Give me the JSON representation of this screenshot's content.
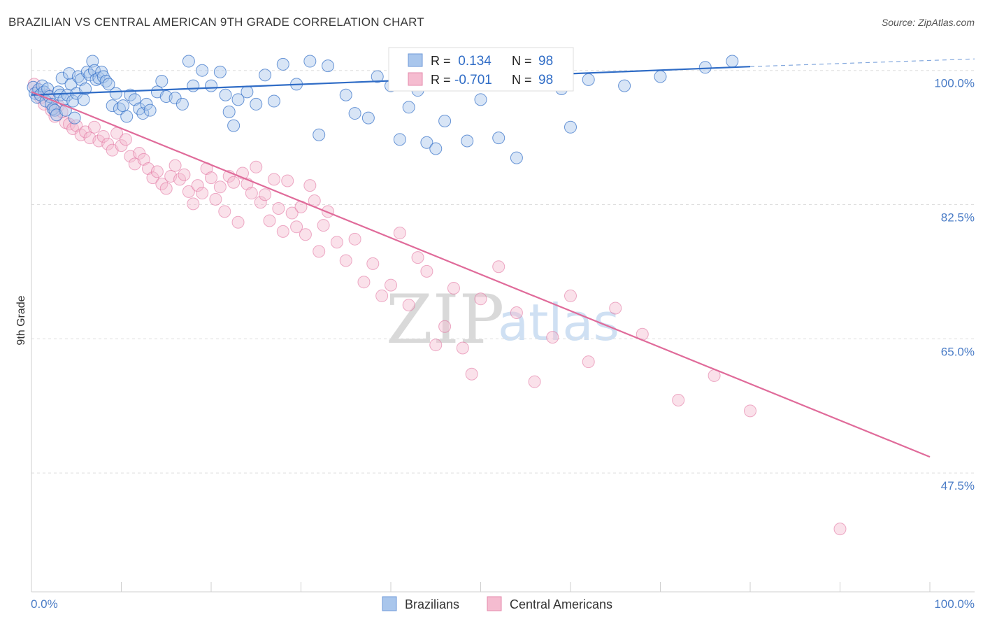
{
  "title": "BRAZILIAN VS CENTRAL AMERICAN 9TH GRADE CORRELATION CHART",
  "source": "Source: ZipAtlas.com",
  "watermark": {
    "zip": "ZIP",
    "atlas": "atlas"
  },
  "colors": {
    "blue": "#2f6cc6",
    "blue_fill": "#a9c6ec",
    "pink": "#e06b9a",
    "pink_fill": "#f5bcd0",
    "grid": "#dddddd",
    "axis_text": "#4a7cc6"
  },
  "legend": {
    "rows": [
      {
        "r_label": "R =",
        "r_value": " 0.134",
        "n_label": "N =",
        "n_value": "98"
      },
      {
        "r_label": "R =",
        "r_value": "-0.701",
        "n_label": "N =",
        "n_value": "98"
      }
    ]
  },
  "bottom_legend": {
    "series1": "Brazilians",
    "series2": "Central Americans"
  },
  "chart_data": {
    "type": "scatter",
    "title": "BRAZILIAN VS CENTRAL AMERICAN 9TH GRADE CORRELATION CHART",
    "xlabel": "",
    "ylabel": "9th Grade",
    "xlim": [
      0,
      100
    ],
    "ylim": [
      32.0,
      102.8
    ],
    "x_tick_labels": {
      "left": "0.0%",
      "right": "100.0%"
    },
    "y_ticks": [
      {
        "value": 100.0,
        "label": "100.0%"
      },
      {
        "value": 82.5,
        "label": "82.5%"
      },
      {
        "value": 65.0,
        "label": "65.0%"
      },
      {
        "value": 47.5,
        "label": "47.5%"
      }
    ],
    "series": [
      {
        "name": "Brazilians",
        "R": 0.134,
        "N": 98,
        "trend": {
          "x0": 0.0,
          "y0": 96.8,
          "x1": 80.0,
          "y1": 100.5,
          "dash_to_x": 100.0,
          "dash_to_y": 101.5
        },
        "points": [
          [
            0.2,
            97.8
          ],
          [
            0.4,
            97.0
          ],
          [
            0.6,
            96.5
          ],
          [
            0.8,
            97.5
          ],
          [
            1.0,
            96.8
          ],
          [
            1.2,
            98.0
          ],
          [
            1.4,
            97.2
          ],
          [
            1.6,
            96.0
          ],
          [
            1.8,
            97.6
          ],
          [
            2.0,
            96.6
          ],
          [
            2.2,
            95.6
          ],
          [
            2.4,
            95.0
          ],
          [
            2.6,
            94.8
          ],
          [
            2.8,
            94.2
          ],
          [
            3.0,
            97.2
          ],
          [
            3.2,
            96.8
          ],
          [
            3.4,
            99.0
          ],
          [
            3.6,
            96.2
          ],
          [
            3.8,
            94.8
          ],
          [
            4.0,
            96.8
          ],
          [
            4.2,
            99.6
          ],
          [
            4.4,
            98.2
          ],
          [
            4.6,
            96.0
          ],
          [
            4.8,
            93.8
          ],
          [
            5.0,
            97.0
          ],
          [
            5.2,
            99.2
          ],
          [
            5.5,
            98.8
          ],
          [
            5.8,
            96.2
          ],
          [
            6.0,
            97.6
          ],
          [
            6.2,
            99.8
          ],
          [
            6.5,
            99.4
          ],
          [
            6.8,
            101.2
          ],
          [
            7.0,
            100.0
          ],
          [
            7.2,
            98.8
          ],
          [
            7.5,
            99.0
          ],
          [
            7.8,
            99.8
          ],
          [
            8.0,
            99.2
          ],
          [
            8.3,
            98.6
          ],
          [
            8.6,
            98.2
          ],
          [
            9.0,
            95.4
          ],
          [
            9.4,
            97.0
          ],
          [
            9.8,
            95.0
          ],
          [
            10.2,
            95.4
          ],
          [
            10.6,
            94.0
          ],
          [
            11.0,
            96.8
          ],
          [
            11.5,
            96.2
          ],
          [
            12.0,
            95.0
          ],
          [
            12.4,
            94.4
          ],
          [
            12.8,
            95.6
          ],
          [
            13.2,
            94.8
          ],
          [
            14.0,
            97.2
          ],
          [
            14.5,
            98.6
          ],
          [
            15.0,
            96.6
          ],
          [
            16.0,
            96.4
          ],
          [
            16.8,
            95.6
          ],
          [
            17.5,
            101.2
          ],
          [
            18.0,
            98.0
          ],
          [
            19.0,
            100.0
          ],
          [
            20.0,
            98.0
          ],
          [
            21.0,
            99.8
          ],
          [
            21.6,
            96.8
          ],
          [
            22.0,
            94.6
          ],
          [
            22.5,
            92.8
          ],
          [
            23.0,
            96.2
          ],
          [
            24.0,
            97.2
          ],
          [
            25.0,
            95.6
          ],
          [
            26.0,
            99.4
          ],
          [
            27.0,
            96.0
          ],
          [
            28.0,
            100.8
          ],
          [
            29.5,
            98.2
          ],
          [
            31.0,
            101.2
          ],
          [
            32.0,
            91.6
          ],
          [
            33.0,
            100.6
          ],
          [
            35.0,
            96.8
          ],
          [
            36.0,
            94.4
          ],
          [
            37.5,
            93.8
          ],
          [
            38.5,
            99.2
          ],
          [
            40.0,
            98.0
          ],
          [
            41.0,
            91.0
          ],
          [
            42.0,
            95.2
          ],
          [
            43.0,
            97.4
          ],
          [
            44.0,
            90.6
          ],
          [
            45.0,
            89.8
          ],
          [
            46.0,
            93.4
          ],
          [
            47.0,
            99.0
          ],
          [
            48.5,
            90.8
          ],
          [
            50.0,
            96.2
          ],
          [
            52.0,
            91.2
          ],
          [
            54.0,
            88.6
          ],
          [
            56.0,
            99.8
          ],
          [
            57.5,
            101.4
          ],
          [
            59.0,
            97.6
          ],
          [
            60.0,
            92.6
          ],
          [
            62.0,
            98.8
          ],
          [
            66.0,
            98.0
          ],
          [
            70.0,
            99.2
          ],
          [
            75.0,
            100.4
          ],
          [
            78.0,
            101.2
          ]
        ]
      },
      {
        "name": "Central Americans",
        "R": -0.701,
        "N": 98,
        "trend": {
          "x0": 0.0,
          "y0": 97.2,
          "x1": 100.0,
          "y1": 49.6
        },
        "points": [
          [
            0.3,
            98.2
          ],
          [
            0.6,
            97.2
          ],
          [
            1.0,
            96.4
          ],
          [
            1.4,
            95.6
          ],
          [
            1.8,
            96.8
          ],
          [
            2.2,
            94.8
          ],
          [
            2.6,
            94.0
          ],
          [
            3.0,
            95.4
          ],
          [
            3.4,
            94.6
          ],
          [
            3.8,
            93.2
          ],
          [
            4.2,
            93.0
          ],
          [
            4.6,
            92.4
          ],
          [
            5.0,
            92.8
          ],
          [
            5.5,
            91.6
          ],
          [
            6.0,
            92.0
          ],
          [
            6.5,
            91.2
          ],
          [
            7.0,
            92.6
          ],
          [
            7.5,
            90.8
          ],
          [
            8.0,
            91.4
          ],
          [
            8.5,
            90.4
          ],
          [
            9.0,
            89.6
          ],
          [
            9.5,
            91.8
          ],
          [
            10.0,
            90.2
          ],
          [
            10.5,
            91.0
          ],
          [
            11.0,
            88.8
          ],
          [
            11.5,
            87.8
          ],
          [
            12.0,
            89.2
          ],
          [
            12.5,
            88.4
          ],
          [
            13.0,
            87.2
          ],
          [
            13.5,
            86.0
          ],
          [
            14.0,
            86.8
          ],
          [
            14.5,
            85.2
          ],
          [
            15.0,
            84.6
          ],
          [
            15.5,
            86.2
          ],
          [
            16.0,
            87.6
          ],
          [
            16.5,
            85.8
          ],
          [
            17.0,
            86.4
          ],
          [
            17.5,
            84.2
          ],
          [
            18.0,
            82.6
          ],
          [
            18.5,
            85.0
          ],
          [
            19.0,
            84.0
          ],
          [
            19.5,
            87.2
          ],
          [
            20.0,
            86.0
          ],
          [
            20.5,
            83.2
          ],
          [
            21.0,
            84.8
          ],
          [
            21.5,
            81.6
          ],
          [
            22.0,
            86.2
          ],
          [
            22.5,
            85.4
          ],
          [
            23.0,
            80.2
          ],
          [
            23.5,
            86.6
          ],
          [
            24.0,
            85.2
          ],
          [
            24.5,
            84.0
          ],
          [
            25.0,
            87.4
          ],
          [
            25.5,
            82.8
          ],
          [
            26.0,
            83.8
          ],
          [
            26.5,
            80.4
          ],
          [
            27.0,
            85.8
          ],
          [
            27.5,
            82.0
          ],
          [
            28.0,
            79.0
          ],
          [
            28.5,
            85.6
          ],
          [
            29.0,
            81.4
          ],
          [
            29.5,
            79.6
          ],
          [
            30.0,
            82.2
          ],
          [
            30.5,
            78.6
          ],
          [
            31.0,
            85.0
          ],
          [
            31.5,
            83.0
          ],
          [
            32.0,
            76.4
          ],
          [
            32.5,
            79.8
          ],
          [
            33.0,
            81.6
          ],
          [
            34.0,
            77.6
          ],
          [
            35.0,
            75.2
          ],
          [
            36.0,
            78.0
          ],
          [
            37.0,
            72.4
          ],
          [
            38.0,
            74.8
          ],
          [
            39.0,
            70.6
          ],
          [
            40.0,
            72.0
          ],
          [
            41.0,
            78.8
          ],
          [
            42.0,
            69.4
          ],
          [
            43.0,
            75.6
          ],
          [
            44.0,
            73.8
          ],
          [
            45.0,
            64.2
          ],
          [
            46.0,
            66.6
          ],
          [
            47.0,
            71.6
          ],
          [
            48.0,
            63.8
          ],
          [
            49.0,
            60.4
          ],
          [
            50.0,
            70.2
          ],
          [
            52.0,
            74.4
          ],
          [
            54.0,
            68.4
          ],
          [
            56.0,
            59.4
          ],
          [
            58.0,
            65.2
          ],
          [
            60.0,
            70.6
          ],
          [
            62.0,
            62.0
          ],
          [
            65.0,
            69.0
          ],
          [
            68.0,
            65.6
          ],
          [
            72.0,
            57.0
          ],
          [
            76.0,
            60.2
          ],
          [
            80.0,
            55.6
          ],
          [
            90.0,
            40.2
          ]
        ]
      }
    ]
  }
}
